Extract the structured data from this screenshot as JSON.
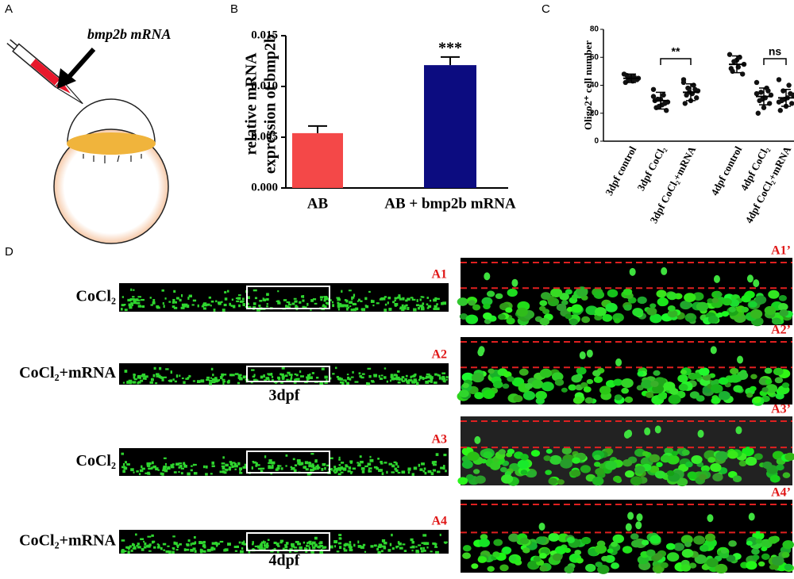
{
  "panel_labels": [
    "A",
    "B",
    "C",
    "D"
  ],
  "panel_a": {
    "label": "bmp2b mRNA"
  },
  "chart_data": [
    {
      "type": "bar",
      "y_label": [
        "relative mRNA",
        "expression of bmp2b"
      ],
      "categories": [
        "AB",
        "AB + bmp2b mRNA"
      ],
      "values": [
        0.0054,
        0.0121
      ],
      "errors": [
        0.0007,
        0.0008
      ],
      "colors": [
        "#f44848",
        "#0c0c80"
      ],
      "annotations": [
        null,
        "***"
      ],
      "ylim": [
        0,
        0.015
      ],
      "yticks": [
        {
          "value": 0,
          "label": "0.000"
        },
        {
          "value": 0.005,
          "label": "0.005"
        },
        {
          "value": 0.01,
          "label": "0.010"
        },
        {
          "value": 0.015,
          "label": "0.015"
        }
      ]
    },
    {
      "type": "dot",
      "y_label": "Oligo2⁺ cell number",
      "categories": [
        "3dpf control",
        "3dpf CoCl₂",
        "3dpf CoCl₂+mRNA",
        "4dpf control",
        "4dpf CoCl₂",
        "4dpf CoCl₂+mRNA"
      ],
      "values": [
        45,
        29,
        35,
        55,
        32,
        31
      ],
      "errors": [
        3,
        6,
        6,
        6,
        6,
        6
      ],
      "points": [
        [
          48,
          46,
          44,
          45,
          43,
          47,
          44,
          46,
          42
        ],
        [
          37,
          33,
          30,
          28,
          26,
          24,
          22,
          30,
          29,
          27,
          25,
          32
        ],
        [
          44,
          40,
          38,
          36,
          34,
          33,
          31,
          29,
          27,
          37,
          35,
          42
        ],
        [
          62,
          60,
          57,
          55,
          53,
          50,
          48,
          58,
          52
        ],
        [
          42,
          38,
          35,
          33,
          31,
          29,
          27,
          24,
          20,
          36,
          30,
          34
        ],
        [
          44,
          40,
          36,
          33,
          31,
          29,
          27,
          25,
          22,
          34,
          30,
          28
        ]
      ],
      "comparisons": [
        {
          "groups": [
            1,
            2
          ],
          "label": "**"
        },
        {
          "groups": [
            4,
            5
          ],
          "label": "ns"
        }
      ],
      "ylim": [
        0,
        80
      ],
      "yticks": [
        0,
        20,
        40,
        60,
        80
      ]
    }
  ],
  "panel_d": {
    "rows": [
      {
        "label": "CoCl₂",
        "tag": "A1",
        "zoom_tag": "A1’"
      },
      {
        "label": "CoCl₂+mRNA",
        "tag": "A2",
        "zoom_tag": "A2’"
      },
      {
        "label": "CoCl₂",
        "tag": "A3",
        "zoom_tag": "A3’"
      },
      {
        "label": "CoCl₂+mRNA",
        "tag": "A4",
        "zoom_tag": "A4’"
      }
    ],
    "stages": [
      "3dpf",
      "4dpf"
    ]
  }
}
